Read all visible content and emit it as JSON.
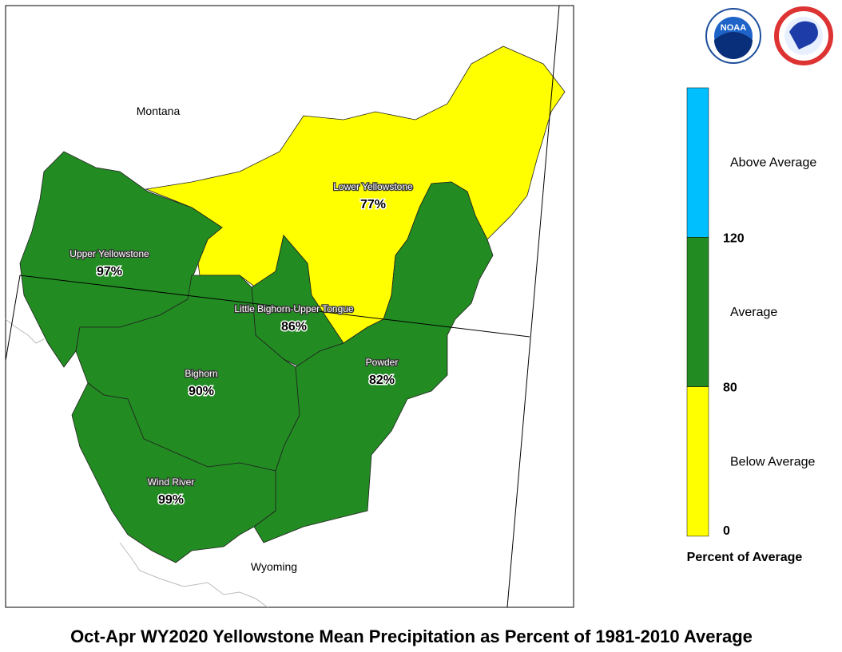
{
  "title": "Oct-Apr WY2020 Yellowstone Mean Precipitation as Percent of 1981-2010 Average",
  "states": [
    "Montana",
    "Wyoming"
  ],
  "basins": [
    {
      "name": "Lower Yellowstone",
      "percent": "77%",
      "color": "#ffff00"
    },
    {
      "name": "Upper Yellowstone",
      "percent": "97%",
      "color": "#228b22"
    },
    {
      "name": "Little Bighorn-Upper Tongue",
      "percent": "86%",
      "color": "#228b22"
    },
    {
      "name": "Bighorn",
      "percent": "90%",
      "color": "#228b22"
    },
    {
      "name": "Powder",
      "percent": "82%",
      "color": "#228b22"
    },
    {
      "name": "Wind River",
      "percent": "99%",
      "color": "#228b22"
    }
  ],
  "legend": {
    "title": "Percent of Average",
    "classes": [
      {
        "label": "Above Average",
        "color": "#00bfff"
      },
      {
        "label": "Average",
        "color": "#228b22"
      },
      {
        "label": "Below Average",
        "color": "#ffff00"
      }
    ],
    "breaks": [
      "120",
      "80",
      "0"
    ]
  },
  "logos": {
    "noaa": "NOAA"
  }
}
